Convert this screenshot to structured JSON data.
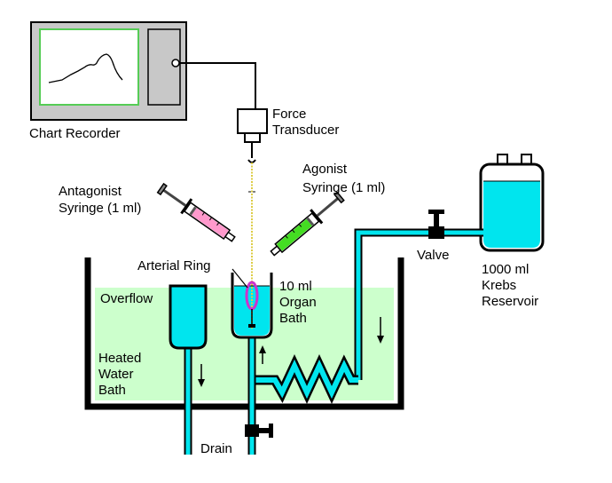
{
  "labels": {
    "chart_recorder": "Chart Recorder",
    "force_transducer": [
      "Force",
      "Transducer"
    ],
    "antagonist_syringe": [
      "Antagonist",
      "Syringe (1 ml)"
    ],
    "agonist_syringe": [
      "Agonist",
      "Syringe (1 ml)"
    ],
    "arterial_ring": "Arterial Ring",
    "organ_bath": [
      "10 ml",
      "Organ",
      "Bath"
    ],
    "overflow": "Overflow",
    "heated_water_bath": [
      "Heated",
      "Water",
      "Bath"
    ],
    "drain": "Drain",
    "valve": "Valve",
    "reservoir": [
      "1000 ml",
      "Krebs",
      "Reservoir"
    ]
  },
  "colors": {
    "krebs": "#00e5ee",
    "water_bath": "#ccffcc",
    "recorder_body": "#c8c8c8",
    "recorder_screen": "#ffffff",
    "screen_border": "#55cc55",
    "antagonist_fluid": "#ff99cc",
    "agonist_fluid": "#44dd22",
    "arterial_ring": "#cc33cc",
    "thread": "#ddcc44"
  }
}
